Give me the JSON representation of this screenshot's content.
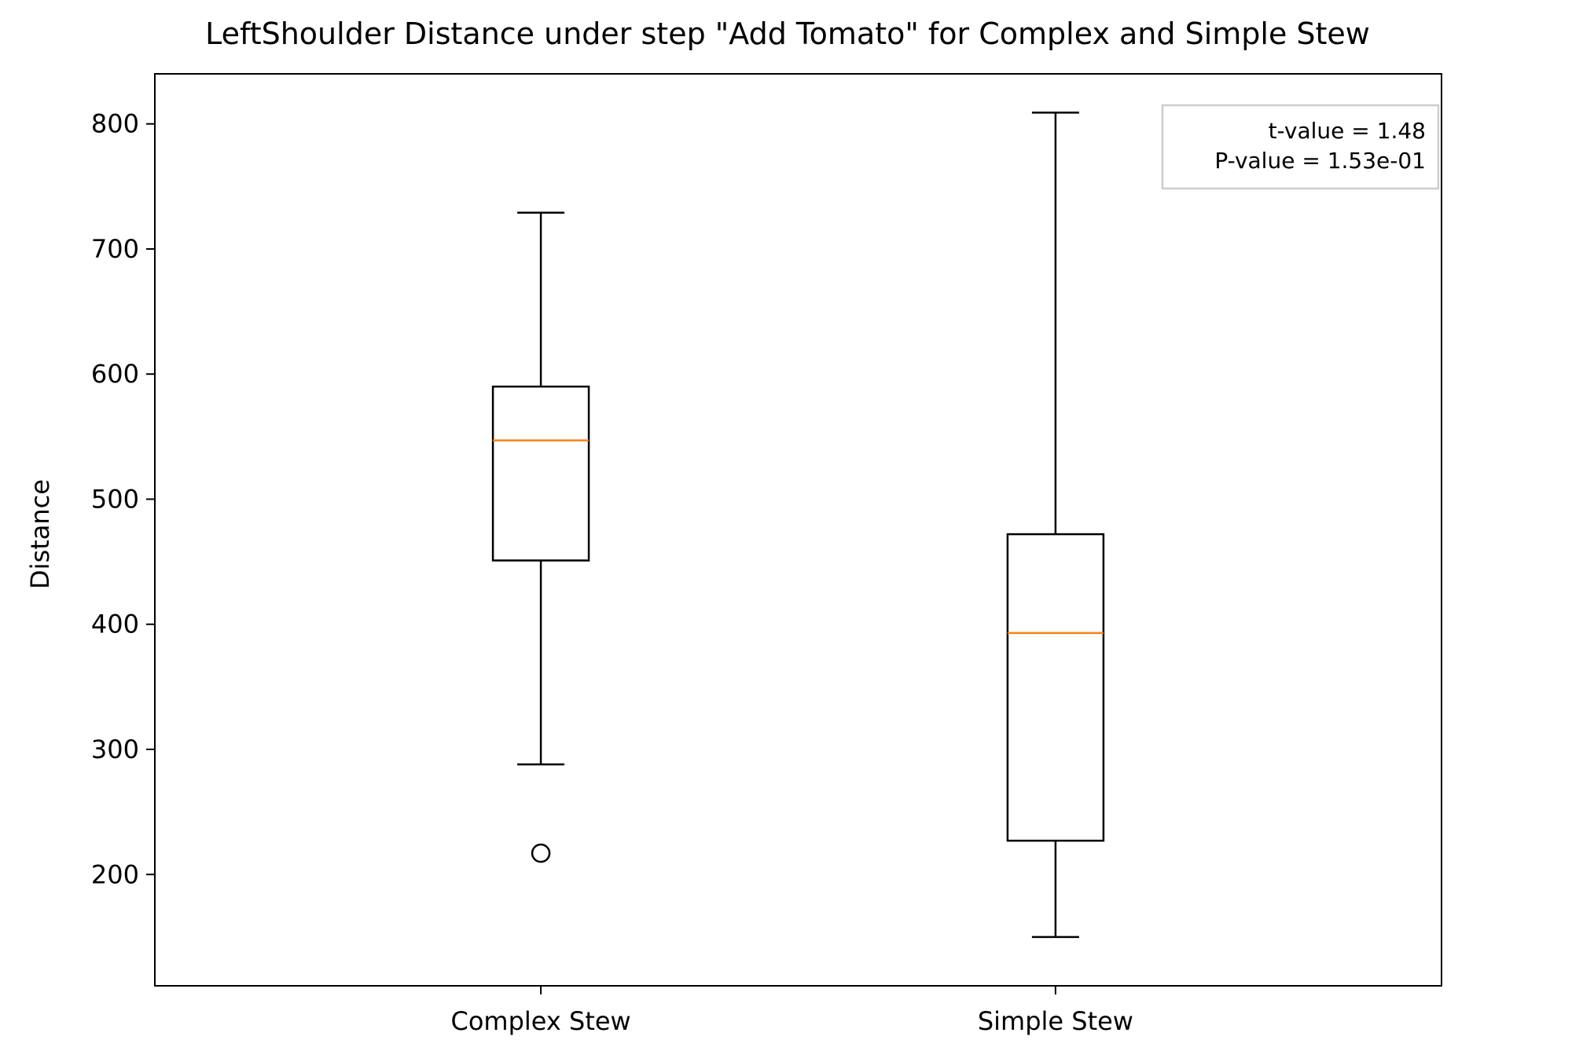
{
  "chart_data": {
    "type": "box",
    "title": "LeftShoulder Distance under step \"Add Tomato\" for Complex and Simple Stew",
    "xlabel": "",
    "ylabel": "Distance",
    "ylim": [
      111,
      840
    ],
    "yticks": [
      200,
      300,
      400,
      500,
      600,
      700,
      800
    ],
    "grid": false,
    "categories": [
      "Complex Stew",
      "Simple Stew"
    ],
    "boxes": [
      {
        "category": "Complex Stew",
        "whisker_low": 288,
        "q1": 451,
        "median": 547,
        "q3": 590,
        "whisker_high": 729,
        "outliers": [
          217
        ]
      },
      {
        "category": "Simple Stew",
        "whisker_low": 150,
        "q1": 227,
        "median": 393,
        "q3": 472,
        "whisker_high": 809,
        "outliers": []
      }
    ],
    "annotation": {
      "lines": [
        "t-value = 1.48",
        "P-value = 1.53e-01"
      ],
      "placement": "top-right"
    },
    "colors": {
      "box": "#000000",
      "median": "#ff7f0e",
      "axes": "#000000",
      "annotation_border": "#cccccc"
    }
  }
}
